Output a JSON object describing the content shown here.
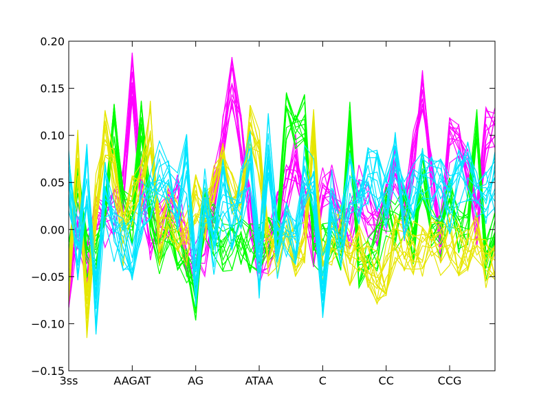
{
  "chart_data": {
    "type": "line",
    "title": "",
    "xlabel": "",
    "ylabel": "",
    "grid": false,
    "legend": "none",
    "ylim": [
      -0.15,
      0.2
    ],
    "yticks": [
      -0.15,
      -0.1,
      -0.05,
      0.0,
      0.05,
      0.1,
      0.15,
      0.2
    ],
    "ytick_labels": [
      "−0.15",
      "−0.10",
      "−0.05",
      "0.00",
      "0.05",
      "0.10",
      "0.15",
      "0.20"
    ],
    "xtick_labels": [
      {
        "label": "3ss",
        "index": 0
      },
      {
        "label": "AAGAT",
        "index": 7
      },
      {
        "label": "AG",
        "index": 14
      },
      {
        "label": "ATAA",
        "index": 21
      },
      {
        "label": "C",
        "index": 28
      },
      {
        "label": "CC",
        "index": 35
      },
      {
        "label": "CCG",
        "index": 42
      }
    ],
    "n_points": 48,
    "colors": [
      "#ff00ff",
      "#00ff00",
      "#e6e600",
      "#00e5ff"
    ],
    "groups": [
      {
        "color": "#ff00ff",
        "base": [
          -0.06,
          0.01,
          -0.03,
          0.005,
          0.01,
          0.02,
          0.04,
          0.16,
          0.04,
          -0.01,
          0.01,
          0.02,
          0.03,
          -0.02,
          -0.04,
          -0.02,
          0.04,
          0.1,
          0.16,
          0.1,
          0.02,
          -0.03,
          -0.02,
          0.01,
          0.04,
          0.08,
          0.02,
          -0.01,
          0.05,
          0.04,
          0.01,
          0.0,
          0.04,
          0.02,
          0.0,
          0.02,
          0.06,
          0.01,
          0.08,
          0.15,
          0.06,
          -0.01,
          0.1,
          0.1,
          0.06,
          0.01,
          0.1,
          0.11
        ]
      },
      {
        "color": "#00ff00",
        "base": [
          -0.03,
          0.05,
          -0.03,
          -0.03,
          0.02,
          0.11,
          0.03,
          0.01,
          0.11,
          0.02,
          -0.02,
          0.01,
          -0.02,
          -0.03,
          -0.07,
          0.02,
          0.0,
          -0.02,
          -0.02,
          -0.01,
          -0.02,
          -0.02,
          -0.01,
          -0.01,
          0.12,
          0.1,
          0.12,
          -0.01,
          -0.02,
          0.0,
          -0.02,
          0.11,
          -0.04,
          -0.02,
          -0.02,
          0.02,
          0.0,
          0.02,
          -0.01,
          0.06,
          0.0,
          -0.01,
          0.03,
          0.0,
          0.01,
          0.12,
          -0.03,
          0.01
        ]
      },
      {
        "color": "#e6e600",
        "base": [
          -0.05,
          0.08,
          -0.09,
          0.03,
          0.1,
          0.06,
          -0.01,
          0.03,
          0.04,
          0.11,
          -0.01,
          0.02,
          0.0,
          -0.01,
          0.03,
          0.01,
          0.04,
          0.09,
          0.03,
          0.03,
          0.11,
          0.08,
          -0.02,
          -0.02,
          0.0,
          -0.02,
          -0.01,
          0.11,
          -0.05,
          -0.01,
          0.0,
          -0.03,
          -0.02,
          -0.04,
          -0.05,
          -0.04,
          -0.01,
          -0.02,
          -0.02,
          -0.02,
          0.0,
          -0.02,
          -0.01,
          -0.02,
          -0.02,
          -0.01,
          -0.04,
          -0.04
        ]
      },
      {
        "color": "#00e5ff",
        "base": [
          0.05,
          -0.02,
          0.06,
          -0.08,
          0.04,
          0.0,
          -0.01,
          -0.02,
          0.02,
          0.04,
          0.06,
          0.05,
          0.03,
          0.07,
          -0.06,
          0.03,
          -0.02,
          0.04,
          0.01,
          0.03,
          0.07,
          -0.04,
          0.09,
          -0.02,
          0.0,
          -0.02,
          0.06,
          0.05,
          -0.06,
          0.03,
          -0.01,
          0.05,
          0.03,
          0.06,
          0.05,
          0.03,
          0.07,
          0.02,
          0.04,
          0.06,
          0.05,
          0.04,
          0.03,
          0.05,
          0.06,
          0.03,
          0.04,
          0.05
        ]
      }
    ],
    "lines_per_group": 12,
    "spread": [
      0.03,
      0.028,
      0.03,
      0.035
    ]
  }
}
